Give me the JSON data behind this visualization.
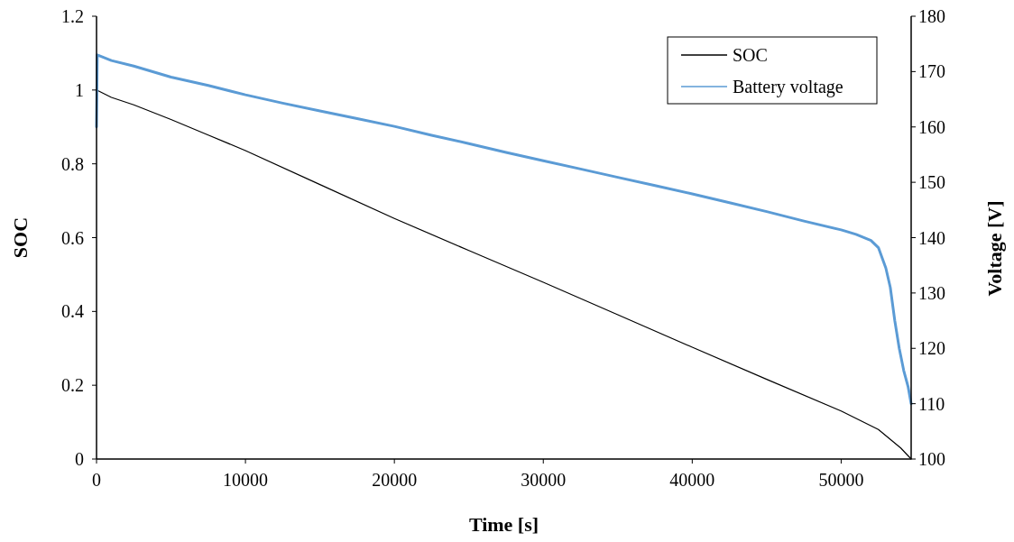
{
  "chart_data": {
    "type": "line",
    "xlabel": "Time [s]",
    "ylabel": "SOC",
    "y2label": "Voltage [V]",
    "xlim": [
      0,
      54700
    ],
    "xticks": [
      0,
      10000,
      20000,
      30000,
      40000,
      50000
    ],
    "ylim": [
      0,
      1.2
    ],
    "yticks": [
      0,
      0.2,
      0.4,
      0.6,
      0.8,
      1,
      1.2
    ],
    "y2lim": [
      100,
      180
    ],
    "y2ticks": [
      100,
      110,
      120,
      130,
      140,
      150,
      160,
      170,
      180
    ],
    "legend": "top right",
    "grid": false,
    "series": [
      {
        "name": "SOC",
        "color": "#000000",
        "x": [
          0,
          1000,
          2500,
          5000,
          7500,
          10000,
          15000,
          20000,
          25000,
          30000,
          35000,
          40000,
          45000,
          50000,
          52500,
          54000,
          54700
        ],
        "values": [
          1.0,
          0.98,
          0.96,
          0.92,
          0.878,
          0.836,
          0.744,
          0.652,
          0.565,
          0.479,
          0.391,
          0.303,
          0.216,
          0.13,
          0.08,
          0.03,
          0.0
        ]
      },
      {
        "name": "Battery voltage",
        "color": "#5b9bd5",
        "axis": "y2",
        "x": [
          0,
          50,
          1000,
          2500,
          5000,
          7500,
          10000,
          12500,
          15000,
          17500,
          20000,
          22500,
          25000,
          27500,
          30000,
          32500,
          35000,
          37500,
          40000,
          42500,
          45000,
          47500,
          50000,
          51000,
          52000,
          52500,
          53000,
          53300,
          53600,
          53900,
          54200,
          54500,
          54700
        ],
        "values": [
          160,
          173,
          172,
          171,
          169,
          167.5,
          165.8,
          164.3,
          162.9,
          161.5,
          160.1,
          158.5,
          157,
          155.4,
          153.9,
          152.4,
          150.9,
          149.4,
          147.9,
          146.3,
          144.7,
          143,
          141.4,
          140.6,
          139.5,
          138.2,
          134.5,
          131,
          125,
          120,
          116,
          113,
          110
        ]
      }
    ]
  }
}
